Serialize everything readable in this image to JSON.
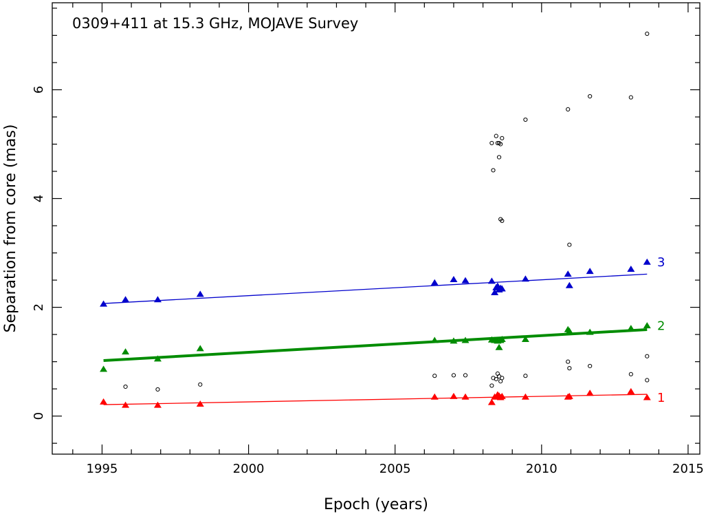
{
  "chart_data": {
    "type": "scatter",
    "title": "0309+411 at 15.3 GHz, MOJAVE Survey",
    "xlabel": "Epoch (years)",
    "ylabel": "Separation from core (mas)",
    "xlim": [
      1993.3,
      2015.4
    ],
    "ylim": [
      -0.7,
      7.6
    ],
    "xticks": [
      1995,
      2000,
      2005,
      2010,
      2015
    ],
    "yticks": [
      0,
      2,
      4,
      6
    ],
    "colors": {
      "c1": "#ff0000",
      "c2": "#008c00",
      "c3": "#0000cc",
      "unassigned": "#000000"
    },
    "series": [
      {
        "name": "1",
        "label": "1",
        "color": "#ff0000",
        "marker": "triangle",
        "fit": {
          "x0": 1995.05,
          "y0": 0.21,
          "x1": 2013.6,
          "y1": 0.4,
          "width": "thin"
        },
        "points": [
          [
            1995.05,
            0.27
          ],
          [
            1995.8,
            0.21
          ],
          [
            1996.9,
            0.21
          ],
          [
            1998.35,
            0.23
          ],
          [
            2006.35,
            0.36
          ],
          [
            2007.0,
            0.37
          ],
          [
            2007.4,
            0.36
          ],
          [
            2008.3,
            0.26
          ],
          [
            2008.4,
            0.36
          ],
          [
            2008.5,
            0.4
          ],
          [
            2008.55,
            0.38
          ],
          [
            2008.6,
            0.35
          ],
          [
            2008.65,
            0.37
          ],
          [
            2009.45,
            0.36
          ],
          [
            2010.9,
            0.36
          ],
          [
            2010.95,
            0.37
          ],
          [
            2011.65,
            0.43
          ],
          [
            2013.05,
            0.46
          ],
          [
            2013.6,
            0.35
          ]
        ]
      },
      {
        "name": "2",
        "label": "2",
        "color": "#008c00",
        "marker": "triangle",
        "fit": {
          "x0": 1995.05,
          "y0": 1.02,
          "x1": 2013.6,
          "y1": 1.59,
          "width": "thick"
        },
        "points": [
          [
            1995.05,
            0.87
          ],
          [
            1995.8,
            1.19
          ],
          [
            1996.9,
            1.06
          ],
          [
            1998.35,
            1.25
          ],
          [
            2006.35,
            1.4
          ],
          [
            2007.0,
            1.39
          ],
          [
            2007.4,
            1.4
          ],
          [
            2008.3,
            1.41
          ],
          [
            2008.4,
            1.4
          ],
          [
            2008.5,
            1.39
          ],
          [
            2008.55,
            1.27
          ],
          [
            2008.6,
            1.4
          ],
          [
            2008.65,
            1.42
          ],
          [
            2009.45,
            1.42
          ],
          [
            2010.9,
            1.6
          ],
          [
            2010.95,
            1.57
          ],
          [
            2011.65,
            1.55
          ],
          [
            2013.05,
            1.62
          ],
          [
            2013.6,
            1.67
          ]
        ]
      },
      {
        "name": "3",
        "label": "3",
        "color": "#0000cc",
        "marker": "triangle",
        "fit": {
          "x0": 1995.05,
          "y0": 2.07,
          "x1": 2013.6,
          "y1": 2.61,
          "width": "thin"
        },
        "points": [
          [
            1995.05,
            2.07
          ],
          [
            1995.8,
            2.15
          ],
          [
            1996.9,
            2.15
          ],
          [
            1998.35,
            2.25
          ],
          [
            2006.35,
            2.46
          ],
          [
            2007.0,
            2.52
          ],
          [
            2007.4,
            2.5
          ],
          [
            2008.3,
            2.49
          ],
          [
            2008.4,
            2.28
          ],
          [
            2008.45,
            2.37
          ],
          [
            2008.5,
            2.4
          ],
          [
            2008.55,
            2.33
          ],
          [
            2008.6,
            2.36
          ],
          [
            2008.65,
            2.35
          ],
          [
            2009.45,
            2.53
          ],
          [
            2010.9,
            2.62
          ],
          [
            2010.95,
            2.41
          ],
          [
            2011.65,
            2.67
          ],
          [
            2013.05,
            2.71
          ],
          [
            2013.6,
            2.84
          ]
        ]
      },
      {
        "name": "unassigned",
        "label": "",
        "color": "#000000",
        "marker": "circle",
        "fit": null,
        "points": [
          [
            1995.8,
            0.54
          ],
          [
            1996.9,
            0.49
          ],
          [
            1998.35,
            0.58
          ],
          [
            2006.35,
            0.74
          ],
          [
            2007.0,
            0.75
          ],
          [
            2007.4,
            0.75
          ],
          [
            2008.3,
            0.56
          ],
          [
            2008.35,
            0.7
          ],
          [
            2008.45,
            0.68
          ],
          [
            2008.5,
            0.78
          ],
          [
            2008.55,
            0.73
          ],
          [
            2008.6,
            0.64
          ],
          [
            2008.65,
            0.7
          ],
          [
            2009.45,
            0.74
          ],
          [
            2010.9,
            1.0
          ],
          [
            2010.95,
            0.88
          ],
          [
            2011.65,
            0.92
          ],
          [
            2013.05,
            0.77
          ],
          [
            2013.6,
            1.1
          ],
          [
            2013.6,
            0.66
          ],
          [
            2008.3,
            5.02
          ],
          [
            2008.35,
            4.52
          ],
          [
            2008.45,
            5.15
          ],
          [
            2008.5,
            5.02
          ],
          [
            2008.55,
            5.02
          ],
          [
            2008.6,
            5.0
          ],
          [
            2008.65,
            5.11
          ],
          [
            2008.55,
            4.76
          ],
          [
            2008.6,
            3.62
          ],
          [
            2008.65,
            3.59
          ],
          [
            2009.45,
            5.45
          ],
          [
            2010.9,
            5.64
          ],
          [
            2010.95,
            3.15
          ],
          [
            2011.65,
            5.88
          ],
          [
            2013.05,
            5.86
          ],
          [
            2013.6,
            7.03
          ]
        ]
      }
    ]
  }
}
